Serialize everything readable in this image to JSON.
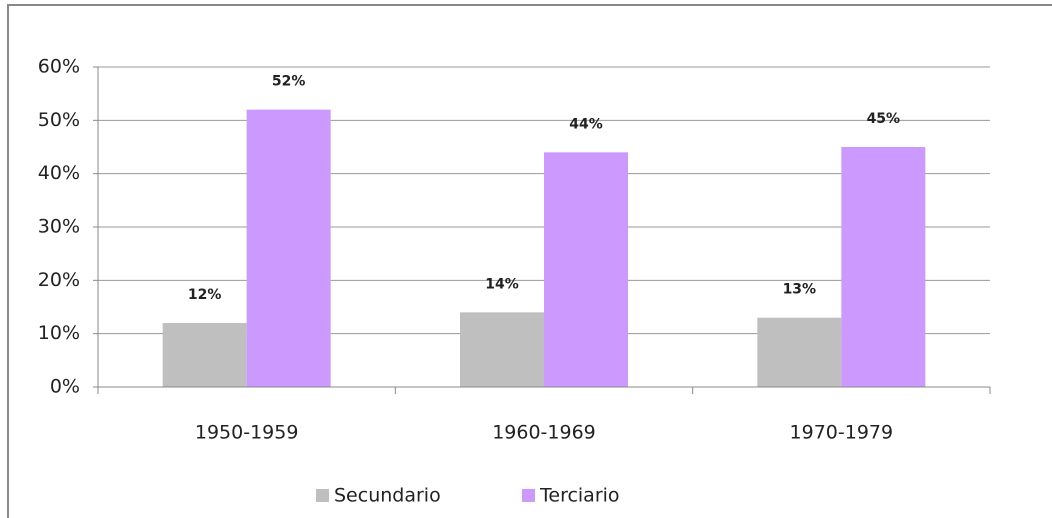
{
  "chart_data": {
    "type": "bar",
    "categories": [
      "1950-1959",
      "1960-1969",
      "1970-1979"
    ],
    "series": [
      {
        "name": "Secundario",
        "color": "#bfbfbf",
        "values": [
          12,
          14,
          13
        ],
        "value_labels": [
          "12%",
          "14%",
          "13%"
        ]
      },
      {
        "name": "Terciario",
        "color": "#cc99ff",
        "values": [
          52,
          44,
          45
        ],
        "value_labels": [
          "52%",
          "44%",
          "45%"
        ]
      }
    ],
    "ylim": [
      0,
      60
    ],
    "yticks": [
      {
        "value": 0,
        "label": "0%"
      },
      {
        "value": 10,
        "label": "10%"
      },
      {
        "value": 20,
        "label": "20%"
      },
      {
        "value": 30,
        "label": "30%"
      },
      {
        "value": 40,
        "label": "40%"
      },
      {
        "value": 50,
        "label": "50%"
      },
      {
        "value": 60,
        "label": "60%"
      }
    ],
    "grid": true,
    "legend": "bottom"
  }
}
